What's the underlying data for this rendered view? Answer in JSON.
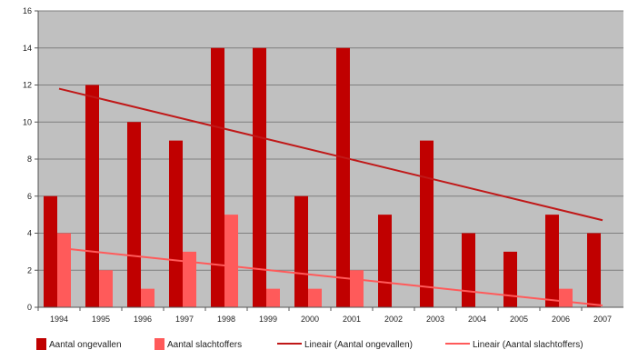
{
  "chart_data": {
    "type": "bar",
    "categories": [
      "1994",
      "1995",
      "1996",
      "1997",
      "1998",
      "1999",
      "2000",
      "2001",
      "2002",
      "2003",
      "2004",
      "2005",
      "2006",
      "2007"
    ],
    "series": [
      {
        "name": "Aantal ongevallen",
        "values": [
          6,
          12,
          10,
          9,
          14,
          14,
          6,
          14,
          5,
          9,
          4,
          3,
          5,
          4
        ],
        "color": "#c00000"
      },
      {
        "name": "Aantal slachtoffers",
        "values": [
          4,
          2,
          1,
          3,
          5,
          1,
          1,
          2,
          0,
          0,
          0,
          0,
          1,
          0
        ],
        "color": "#ff5a5a"
      }
    ],
    "trendlines": [
      {
        "name": "Lineair (Aantal ongevallen)",
        "start": 11.8,
        "end": 4.7,
        "color": "#c01818"
      },
      {
        "name": "Lineair (Aantal slachtoffers)",
        "start": 3.2,
        "end": 0.1,
        "color": "#ff5a5a"
      }
    ],
    "yticks": [
      "0",
      "2",
      "4",
      "6",
      "8",
      "10",
      "12",
      "14",
      "16"
    ],
    "ylim": [
      0,
      16
    ],
    "grid": true,
    "legend_position": "bottom",
    "plot_background": "#c0c0c0",
    "gridline_color": "#7f7f7f"
  }
}
